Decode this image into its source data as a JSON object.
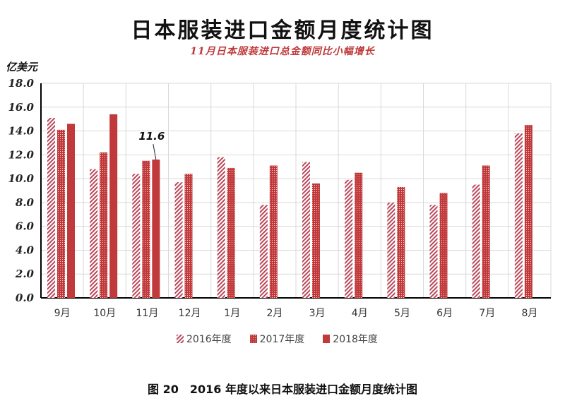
{
  "title": "日本服装进口金额月度统计图",
  "subtitle": "11月日本服装进口总金额同比小幅增长",
  "y_unit": "亿美元",
  "caption": "图 20　2016 年度以来日本服装进口金额月度统计图",
  "colors": {
    "series_2016": "#b9475a",
    "series_2017": "#c0393b",
    "series_2018": "#c0393b",
    "grid": "#d9d9d9",
    "axis": "#000000"
  },
  "chart_data": {
    "type": "bar",
    "title": "日本服装进口金额月度统计图",
    "subtitle": "11月日本服装进口总金额同比小幅增长",
    "ylabel": "亿美元",
    "ylim": [
      0,
      18
    ],
    "y_ticks": [
      "0.0",
      "2.0",
      "4.0",
      "6.0",
      "8.0",
      "10.0",
      "12.0",
      "14.0",
      "16.0",
      "18.0"
    ],
    "grid": true,
    "legend_position": "bottom",
    "categories": [
      "9月",
      "10月",
      "11月",
      "12月",
      "1月",
      "2月",
      "3月",
      "4月",
      "5月",
      "6月",
      "7月",
      "8月"
    ],
    "series": [
      {
        "name": "2016年度",
        "pattern": "diagonal-stripes",
        "values": [
          15.1,
          10.8,
          10.4,
          9.7,
          11.8,
          7.8,
          11.4,
          9.9,
          8.0,
          7.8,
          9.5,
          13.8
        ]
      },
      {
        "name": "2017年度",
        "pattern": "dotted",
        "values": [
          14.1,
          12.2,
          11.5,
          10.4,
          10.9,
          11.1,
          9.6,
          10.5,
          9.3,
          8.8,
          11.1,
          14.5
        ]
      },
      {
        "name": "2018年度",
        "pattern": "solid",
        "values": [
          14.6,
          15.4,
          11.6,
          null,
          null,
          null,
          null,
          null,
          null,
          null,
          null,
          null
        ]
      }
    ],
    "annotations": [
      {
        "text": "11.6",
        "category": "11月",
        "series": "2018年度"
      }
    ]
  }
}
